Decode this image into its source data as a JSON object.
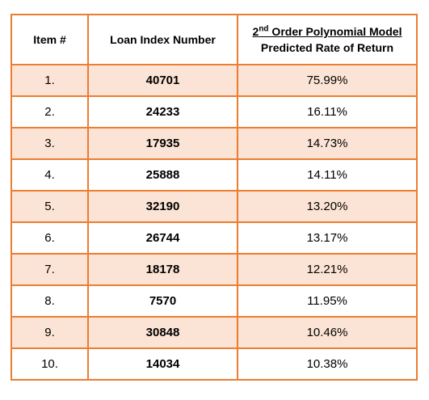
{
  "table": {
    "headers": {
      "item": "Item #",
      "loan_index": "Loan Index Number",
      "prediction_line1_prefix": "2",
      "prediction_line1_sup": "nd",
      "prediction_line1_rest": " Order Polynomial Model",
      "prediction_line2": "Predicted Rate of Return"
    },
    "rows": [
      {
        "item": "1.",
        "loan_index": "40701",
        "rate": "75.99%"
      },
      {
        "item": "2.",
        "loan_index": "24233",
        "rate": "16.11%"
      },
      {
        "item": "3.",
        "loan_index": "17935",
        "rate": "14.73%"
      },
      {
        "item": "4.",
        "loan_index": "25888",
        "rate": "14.11%"
      },
      {
        "item": "5.",
        "loan_index": "32190",
        "rate": "13.20%"
      },
      {
        "item": "6.",
        "loan_index": "26744",
        "rate": "13.17%"
      },
      {
        "item": "7.",
        "loan_index": "18178",
        "rate": "12.21%"
      },
      {
        "item": "8.",
        "loan_index": "7570",
        "rate": "11.95%"
      },
      {
        "item": "9.",
        "loan_index": "30848",
        "rate": "10.46%"
      },
      {
        "item": "10.",
        "loan_index": "14034",
        "rate": "10.38%"
      }
    ],
    "colors": {
      "border": "#ed7d31",
      "shaded_row": "#fbe4d5"
    }
  }
}
